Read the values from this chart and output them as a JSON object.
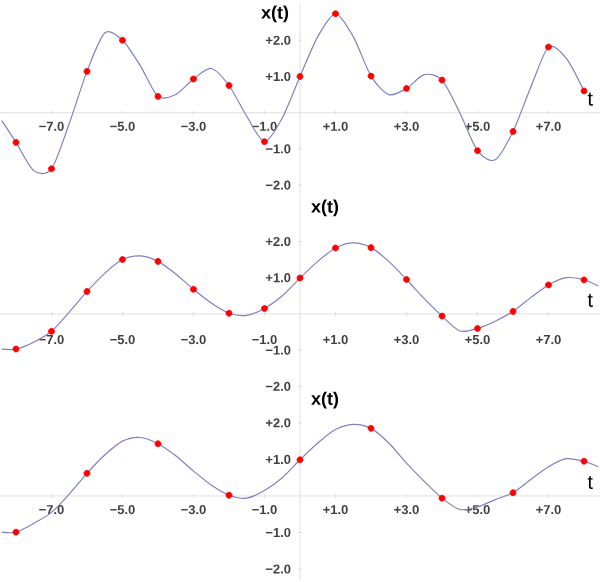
{
  "chart_data": [
    {
      "type": "line",
      "xlabel": "t",
      "ylabel": "x(t)",
      "xlim": [
        -8.45,
        8.45
      ],
      "ylim": [
        -2.3,
        3.0
      ],
      "xticks": [
        {
          "value": -7,
          "label": "−7.0"
        },
        {
          "value": -5,
          "label": "−5.0"
        },
        {
          "value": -3,
          "label": "−3.0"
        },
        {
          "value": -1,
          "label": "−1.0"
        },
        {
          "value": 1,
          "label": "+1.0"
        },
        {
          "value": 3,
          "label": "+3.0"
        },
        {
          "value": 5,
          "label": "+5.0"
        },
        {
          "value": 7,
          "label": "+7.0"
        }
      ],
      "yticks": [
        {
          "value": -2,
          "label": "−2.0"
        },
        {
          "value": -1,
          "label": "−1.0"
        },
        {
          "value": 1,
          "label": "+1.0"
        },
        {
          "value": 2,
          "label": "+2.0"
        }
      ],
      "series": [
        {
          "type": "line",
          "color": "#8080c0",
          "marker": "none",
          "x": [
            -8.4,
            -8,
            -7.5,
            -7,
            -6.5,
            -6,
            -5.5,
            -5,
            -4.5,
            -4,
            -3.5,
            -3,
            -2.5,
            -2,
            -1.5,
            -1,
            -0.5,
            0,
            0.5,
            1,
            1.5,
            2,
            2.5,
            3,
            3.5,
            4,
            4.5,
            5,
            5.5,
            6,
            6.5,
            7,
            7.5,
            8
          ],
          "values": [
            -0.22,
            -0.82,
            -1.6,
            -1.55,
            -0.3,
            1.14,
            2.2,
            2.0,
            1.3,
            0.45,
            0.5,
            0.93,
            1.22,
            0.75,
            -0.1,
            -0.8,
            -0.15,
            1.0,
            2.1,
            2.73,
            2.1,
            1.01,
            0.5,
            0.67,
            1.05,
            0.9,
            0.0,
            -1.05,
            -1.3,
            -0.52,
            0.7,
            1.81,
            1.5,
            0.6
          ]
        },
        {
          "type": "scatter",
          "color": "#ff0000",
          "marker": "circle",
          "x": [
            -8,
            -7,
            -6,
            -5,
            -4,
            -3,
            -2,
            -1,
            0,
            1,
            2,
            3,
            4,
            5,
            6,
            7,
            8
          ],
          "values": [
            -0.82,
            -1.55,
            1.14,
            2.0,
            0.45,
            0.93,
            0.75,
            -0.8,
            1.0,
            2.73,
            1.01,
            0.67,
            0.9,
            -1.05,
            -0.52,
            1.81,
            0.6
          ]
        }
      ]
    },
    {
      "type": "line",
      "xlabel": "t",
      "ylabel": "x(t)",
      "xlim": [
        -8.45,
        8.45
      ],
      "ylim": [
        -2.1,
        3.2
      ],
      "xticks": [
        {
          "value": -7,
          "label": "−7.0"
        },
        {
          "value": -5,
          "label": "−5.0"
        },
        {
          "value": -3,
          "label": "−3.0"
        },
        {
          "value": -1,
          "label": "−1.0"
        },
        {
          "value": 1,
          "label": "+1.0"
        },
        {
          "value": 3,
          "label": "+3.0"
        },
        {
          "value": 5,
          "label": "+5.0"
        },
        {
          "value": 7,
          "label": "+7.0"
        }
      ],
      "yticks": [
        {
          "value": -2,
          "label": "−2.0"
        },
        {
          "value": -1,
          "label": "−1.0"
        },
        {
          "value": 1,
          "label": "+1.0"
        },
        {
          "value": 2,
          "label": "+2.0"
        }
      ],
      "series": [
        {
          "type": "line",
          "color": "#8080c0",
          "marker": "none",
          "x": [
            -8.4,
            -8,
            -7.5,
            -7,
            -6.5,
            -6,
            -5.5,
            -5,
            -4.5,
            -4,
            -3.5,
            -3,
            -2.5,
            -2,
            -1.5,
            -1,
            -0.5,
            0,
            0.5,
            1,
            1.5,
            2,
            2.5,
            3,
            3.5,
            4,
            4.5,
            5,
            5.5,
            6,
            6.5,
            7,
            7.5,
            8,
            8.4
          ],
          "values": [
            -0.97,
            -0.97,
            -0.78,
            -0.48,
            0.05,
            0.62,
            1.12,
            1.5,
            1.6,
            1.45,
            1.1,
            0.68,
            0.3,
            0.02,
            -0.04,
            0.15,
            0.5,
            0.99,
            1.45,
            1.82,
            1.96,
            1.83,
            1.45,
            0.95,
            0.42,
            -0.06,
            -0.47,
            -0.4,
            -0.2,
            0.07,
            0.45,
            0.8,
            1.0,
            0.94,
            0.77
          ]
        },
        {
          "type": "scatter",
          "color": "#ff0000",
          "marker": "circle",
          "x": [
            -8,
            -7,
            -6,
            -5,
            -4,
            -3,
            -2,
            -1,
            0,
            1,
            2,
            3,
            4,
            5,
            6,
            7,
            8
          ],
          "values": [
            -0.97,
            -0.48,
            0.62,
            1.5,
            1.45,
            0.68,
            0.02,
            0.15,
            0.99,
            1.82,
            1.83,
            0.95,
            -0.06,
            -0.4,
            0.07,
            0.8,
            0.94
          ]
        }
      ]
    },
    {
      "type": "line",
      "xlabel": "t",
      "ylabel": "x(t)",
      "xlim": [
        -8.45,
        8.45
      ],
      "ylim": [
        -2.3,
        2.9
      ],
      "xticks": [
        {
          "value": -7,
          "label": "−7.0"
        },
        {
          "value": -5,
          "label": "−5.0"
        },
        {
          "value": -3,
          "label": "−3.0"
        },
        {
          "value": -1,
          "label": "−1.0"
        },
        {
          "value": 1,
          "label": "+1.0"
        },
        {
          "value": 3,
          "label": "+3.0"
        },
        {
          "value": 5,
          "label": "+5.0"
        },
        {
          "value": 7,
          "label": "+7.0"
        }
      ],
      "yticks": [
        {
          "value": -2,
          "label": "−2.0"
        },
        {
          "value": -1,
          "label": "−1.0"
        },
        {
          "value": 1,
          "label": "+1.0"
        },
        {
          "value": 2,
          "label": "+2.0"
        }
      ],
      "series": [
        {
          "type": "line",
          "color": "#8080c0",
          "marker": "none",
          "x": [
            -8.4,
            -8,
            -7.5,
            -7,
            -6.5,
            -6,
            -5.5,
            -5,
            -4.5,
            -4,
            -3.5,
            -3,
            -2.5,
            -2,
            -1.5,
            -1,
            -0.5,
            0,
            0.5,
            1,
            1.5,
            2,
            2.5,
            3,
            3.5,
            4,
            4.5,
            5,
            5.5,
            6,
            6.5,
            7,
            7.5,
            8,
            8.4
          ],
          "values": [
            -0.99,
            -0.99,
            -0.75,
            -0.45,
            0.05,
            0.62,
            1.12,
            1.5,
            1.6,
            1.43,
            1.1,
            0.68,
            0.3,
            0.02,
            -0.06,
            0.15,
            0.5,
            0.99,
            1.45,
            1.82,
            1.96,
            1.85,
            1.45,
            0.9,
            0.4,
            -0.06,
            -0.37,
            -0.3,
            -0.1,
            0.09,
            0.45,
            0.8,
            1.02,
            0.95,
            0.8
          ]
        },
        {
          "type": "scatter",
          "color": "#ff0000",
          "marker": "circle",
          "x": [
            -8,
            -6,
            -4,
            -2,
            0,
            2,
            4,
            6,
            8
          ],
          "values": [
            -0.99,
            0.62,
            1.43,
            0.02,
            0.99,
            1.85,
            -0.06,
            0.09,
            0.95
          ]
        }
      ]
    }
  ]
}
